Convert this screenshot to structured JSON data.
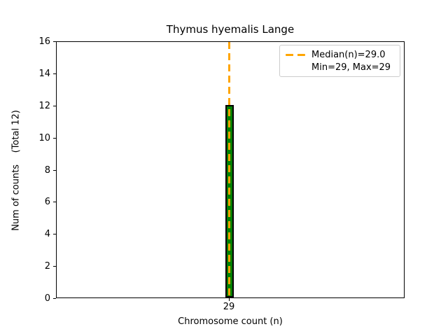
{
  "chart_data": {
    "type": "bar",
    "title": "Thymus hyemalis Lange",
    "xlabel": "Chromosome count (n)",
    "ylabel": "Num of counts    (Total 12)",
    "categories": [
      "29"
    ],
    "values": [
      12
    ],
    "total": 12,
    "ylim": [
      0,
      16
    ],
    "yticks": [
      0,
      2,
      4,
      6,
      8,
      10,
      12,
      14,
      16
    ],
    "median": 29.0,
    "min": 29,
    "max": 29,
    "legend_labels": [
      "Median(n)=29.0",
      "Min=29, Max=29"
    ],
    "legend_position": "upper right",
    "grid": false,
    "colors": {
      "bar_fill": "#008000",
      "bar_edge": "#000000",
      "median_line": "#FFA500",
      "axis": "#000000",
      "legend_border": "#cccccc",
      "background": "#ffffff"
    }
  }
}
